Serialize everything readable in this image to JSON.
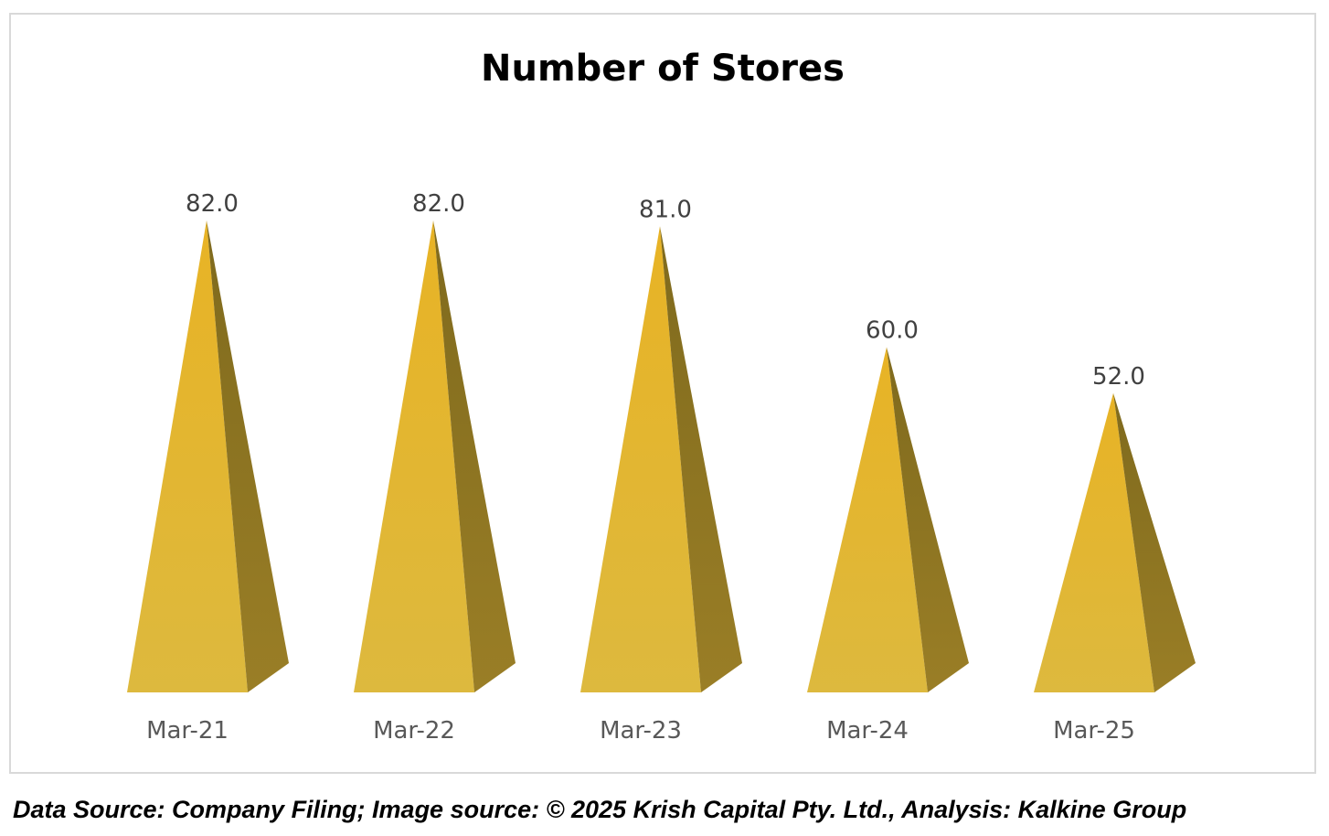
{
  "chart_data": {
    "type": "bar",
    "bar_shape": "3d-pyramid",
    "title": "Number of Stores",
    "categories": [
      "Mar-21",
      "Mar-22",
      "Mar-23",
      "Mar-24",
      "Mar-25"
    ],
    "values": [
      82.0,
      82.0,
      81.0,
      60.0,
      52.0
    ],
    "value_labels": [
      "82.0",
      "82.0",
      "81.0",
      "60.0",
      "52.0"
    ],
    "xlabel": "",
    "ylabel": "",
    "ylim": [
      0,
      82
    ],
    "grid": false,
    "legend": "none",
    "colors": {
      "front_top": "#e8b325",
      "front_bottom": "#ddb93e",
      "side_top": "#7f6a1d",
      "side_bottom": "#9a7e26"
    }
  },
  "footer": {
    "source_text": "Data Source: Company Filing; Image source: © 2025 Krish Capital Pty. Ltd., Analysis: Kalkine Group"
  }
}
